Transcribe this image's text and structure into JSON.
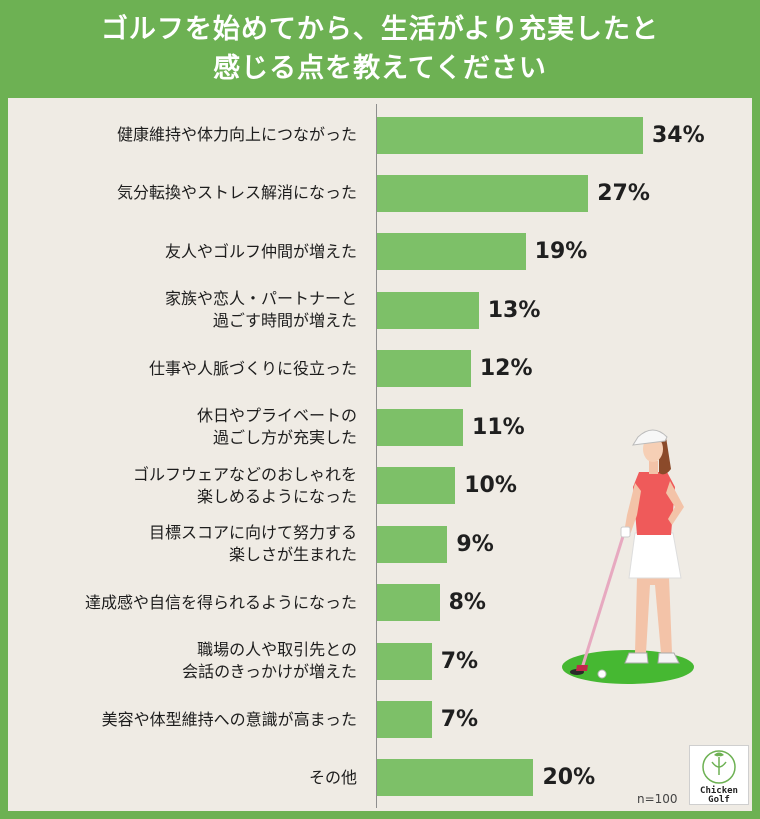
{
  "title_lines": [
    "ゴルフを始めてから、生活がより充実したと",
    "感じる点を教えてください"
  ],
  "sample_note": "n=100",
  "logo": {
    "text_line1": "Chicken",
    "text_line2": "Golf",
    "icon": "chicken-icon"
  },
  "colors": {
    "frame": "#6db153",
    "bar": "#7dc068",
    "panel": "#efebe4"
  },
  "chart_data": {
    "type": "bar",
    "orientation": "horizontal",
    "categories": [
      [
        "健康維持や体力向上につながった"
      ],
      [
        "気分転換やストレス解消になった"
      ],
      [
        "友人やゴルフ仲間が増えた"
      ],
      [
        "家族や恋人・パートナーと",
        "過ごす時間が増えた"
      ],
      [
        "仕事や人脈づくりに役立った"
      ],
      [
        "休日やプライベートの",
        "過ごし方が充実した"
      ],
      [
        "ゴルフウェアなどのおしゃれを",
        "楽しめるようになった"
      ],
      [
        "目標スコアに向けて努力する",
        "楽しさが生まれた"
      ],
      [
        "達成感や自信を得られるようになった"
      ],
      [
        "職場の人や取引先との",
        "会話のきっかけが増えた"
      ],
      [
        "美容や体型維持への意識が高まった"
      ],
      [
        "その他"
      ]
    ],
    "values": [
      34,
      27,
      19,
      13,
      12,
      11,
      10,
      9,
      8,
      7,
      7,
      20
    ],
    "value_labels": [
      "34%",
      "27%",
      "19%",
      "13%",
      "12%",
      "11%",
      "10%",
      "9%",
      "8%",
      "7%",
      "7%",
      "20%"
    ],
    "unit": "%",
    "xlim": [
      0,
      34
    ]
  }
}
